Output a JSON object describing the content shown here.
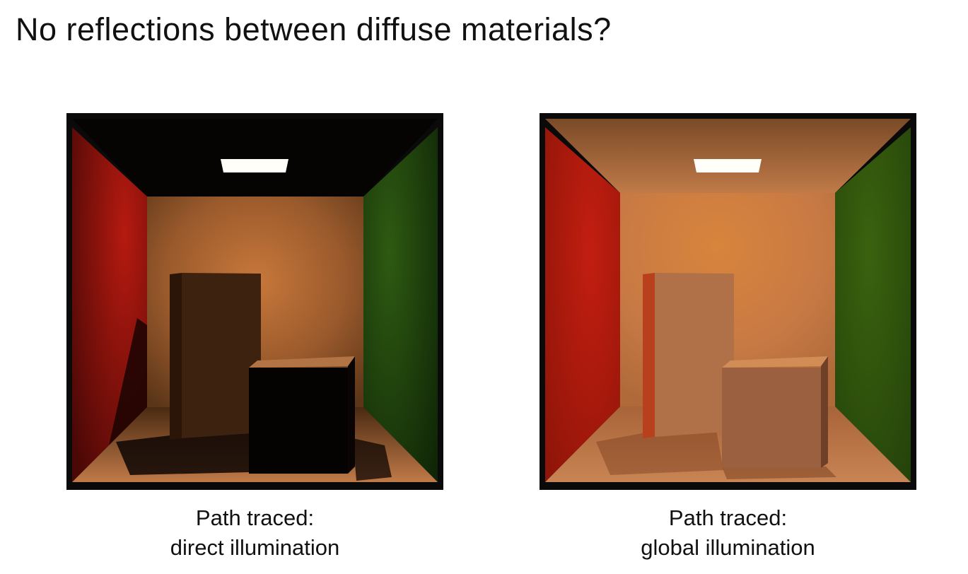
{
  "slide": {
    "title": "No reflections between diffuse materials?"
  },
  "figures": [
    {
      "caption_line1": "Path traced:",
      "caption_line2": "direct illumination"
    },
    {
      "caption_line1": "Path traced:",
      "caption_line2": "global illumination"
    }
  ],
  "colors": {
    "frame": "#0a0a0a",
    "red_wall": "#b51a10",
    "green_wall": "#2e5a12",
    "back_wall": "#c8783a",
    "light": "#ffffff"
  }
}
